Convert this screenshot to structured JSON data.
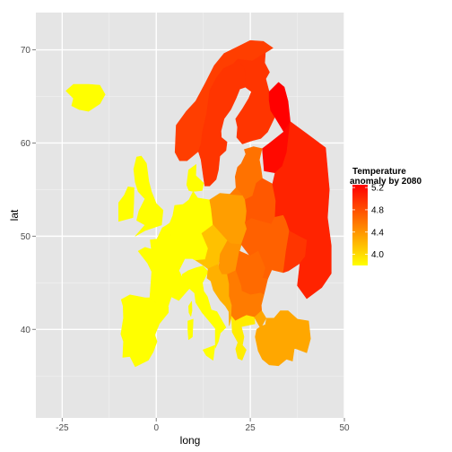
{
  "chart_data": {
    "type": "choropleth-map",
    "xlabel": "long",
    "ylabel": "lat",
    "xlim": [
      -32,
      50
    ],
    "ylim": [
      30.5,
      74
    ],
    "xticks": [
      -25,
      0,
      25,
      50
    ],
    "xtick_labels": [
      "-25",
      "0",
      "25",
      "50"
    ],
    "yticks": [
      40,
      50,
      60,
      70
    ],
    "ytick_labels": [
      "40",
      "50",
      "60",
      "70"
    ],
    "grid": true,
    "legend": {
      "title_line1": "Temperature",
      "title_line2": " anomaly by 2080",
      "position": "right",
      "range": [
        3.8,
        5.25
      ],
      "ticks": [
        5.2,
        4.8,
        4.4,
        4.0
      ],
      "tick_labels": [
        "5.2",
        "4.8",
        "4.4",
        "4.0"
      ],
      "color_low": "#ffff00",
      "color_high": "#ff0000"
    },
    "regions": [
      {
        "name": "Iceland",
        "value": 3.8
      },
      {
        "name": "Ireland",
        "value": 3.8
      },
      {
        "name": "Great Britain",
        "value": 3.8
      },
      {
        "name": "Iberia",
        "value": 3.8
      },
      {
        "name": "France",
        "value": 3.8
      },
      {
        "name": "Benelux",
        "value": 3.8
      },
      {
        "name": "Germany",
        "value": 3.8
      },
      {
        "name": "Denmark",
        "value": 3.8
      },
      {
        "name": "Italy",
        "value": 3.8
      },
      {
        "name": "Sicily",
        "value": 3.8
      },
      {
        "name": "Sardinia",
        "value": 3.8
      },
      {
        "name": "Corsica",
        "value": 3.8
      },
      {
        "name": "Norway",
        "value": 4.9
      },
      {
        "name": "Sweden",
        "value": 4.95
      },
      {
        "name": "Finland",
        "value": 4.95
      },
      {
        "name": "Finland East",
        "value": 5.25
      },
      {
        "name": "Western Russia",
        "value": 5.2
      },
      {
        "name": "Baltic States",
        "value": 4.6
      },
      {
        "name": "Belarus",
        "value": 4.75
      },
      {
        "name": "Poland",
        "value": 4.35
      },
      {
        "name": "Czechia Austria",
        "value": 4.15
      },
      {
        "name": "Hungary Slovakia",
        "value": 4.4
      },
      {
        "name": "Ukraine",
        "value": 4.7
      },
      {
        "name": "Ukraine East",
        "value": 4.95
      },
      {
        "name": "Russia South",
        "value": 5.05
      },
      {
        "name": "Romania",
        "value": 4.65
      },
      {
        "name": "Balkans West",
        "value": 4.25
      },
      {
        "name": "Serbia Bulgaria",
        "value": 4.55
      },
      {
        "name": "Greece",
        "value": 3.9
      },
      {
        "name": "Turkey",
        "value": 4.3
      },
      {
        "name": "Kaliningrad",
        "value": 4.55
      }
    ]
  }
}
